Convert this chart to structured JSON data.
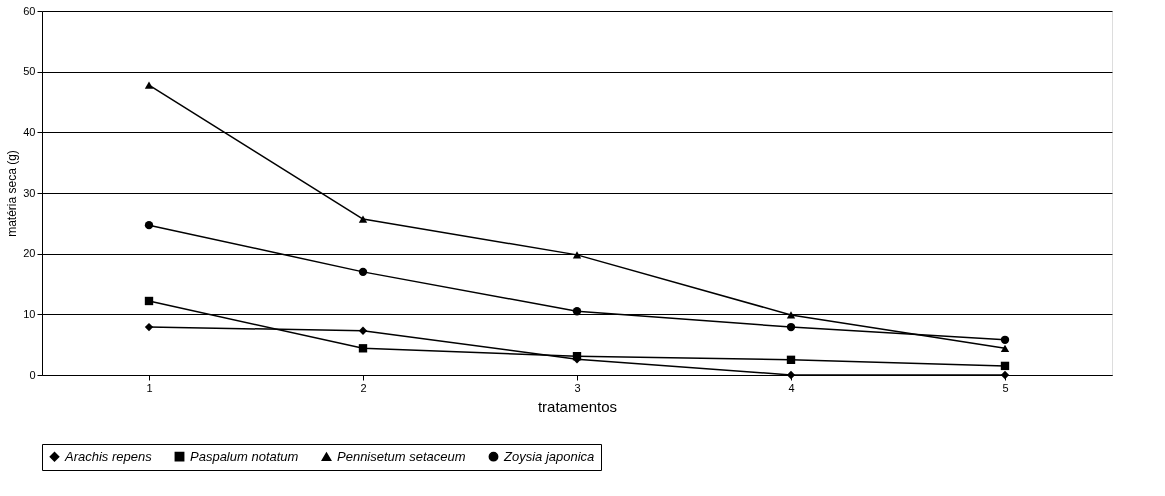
{
  "chart_data": {
    "type": "line",
    "xlabel": "tratamentos",
    "ylabel": "matéria seca (g)",
    "categories": [
      "1",
      "2",
      "3",
      "4",
      "5"
    ],
    "series": [
      {
        "name": "Arachis repens",
        "color": "#000000",
        "marker": "diamond",
        "values": [
          7.9,
          7.3,
          2.6,
          0,
          0
        ]
      },
      {
        "name": "Paspalum notatum",
        "color": "#000000",
        "marker": "square",
        "values": [
          12.2,
          4.4,
          3.1,
          2.5,
          1.5
        ]
      },
      {
        "name": "Pennisetum setaceum",
        "color": "#000000",
        "marker": "triangle",
        "values": [
          47.8,
          25.7,
          19.8,
          9.9,
          4.4
        ]
      },
      {
        "name": "Zoysia japonica",
        "color": "#000000",
        "marker": "circle",
        "values": [
          24.7,
          17.0,
          10.5,
          7.9,
          5.8
        ]
      }
    ],
    "ylim": [
      0,
      60
    ],
    "yticks": [
      0,
      10,
      20,
      30,
      40,
      50,
      60
    ],
    "grid": "y",
    "legend": "bottom",
    "line_style": "solid"
  }
}
